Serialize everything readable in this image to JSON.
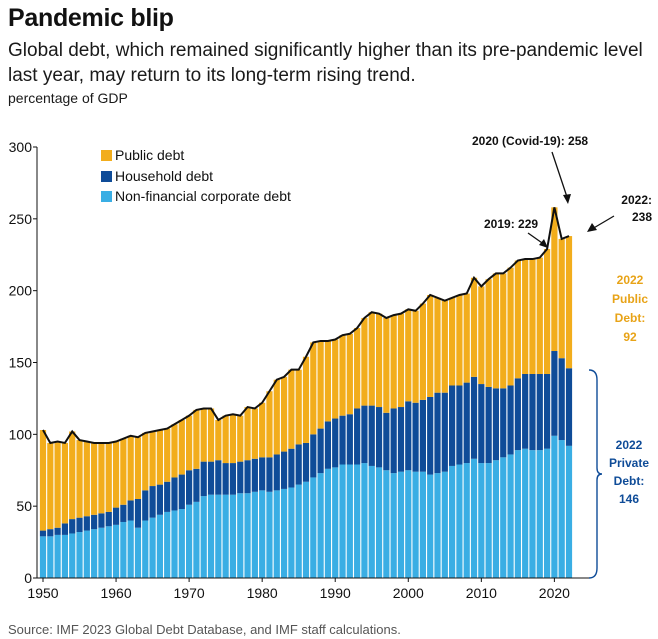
{
  "header": {
    "title": "Pandemic blip",
    "subtitle": "Global debt, which remained significantly higher than its pre-pandemic level last year, may return to its long-term rising trend.",
    "unit": "(percentage of GDP)"
  },
  "source": "Source: IMF 2023 Global Debt Database, and IMF staff calculations.",
  "colors": {
    "public": "#f2ad1c",
    "household": "#0f4c98",
    "corporate": "#3aaee4",
    "total_line": "#111111",
    "public_label": "#e8a317",
    "private_label": "#0f4c98"
  },
  "annotations": {
    "covid": "2020 (Covid-19): 258",
    "y2019": "2019: 229",
    "y2022_a": "2022:",
    "y2022_b": "238",
    "public_1": "2022",
    "public_2": "Public",
    "public_3": "Debt:",
    "public_4": "92",
    "private_1": "2022",
    "private_2": "Private",
    "private_3": "Debt:",
    "private_4": "146"
  },
  "chart_data": {
    "type": "bar",
    "stacked": true,
    "title": "Pandemic blip",
    "xlabel": "",
    "ylabel": "percentage of GDP",
    "ylim": [
      0,
      300
    ],
    "yticks": [
      0,
      50,
      100,
      150,
      200,
      250,
      300
    ],
    "xticks": [
      1950,
      1960,
      1970,
      1980,
      1990,
      2000,
      2010,
      2020
    ],
    "legend": [
      "Public debt",
      "Household debt",
      "Non-financial corporate debt"
    ],
    "x": [
      1950,
      1951,
      1952,
      1953,
      1954,
      1955,
      1956,
      1957,
      1958,
      1959,
      1960,
      1961,
      1962,
      1963,
      1964,
      1965,
      1966,
      1967,
      1968,
      1969,
      1970,
      1971,
      1972,
      1973,
      1974,
      1975,
      1976,
      1977,
      1978,
      1979,
      1980,
      1981,
      1982,
      1983,
      1984,
      1985,
      1986,
      1987,
      1988,
      1989,
      1990,
      1991,
      1992,
      1993,
      1994,
      1995,
      1996,
      1997,
      1998,
      1999,
      2000,
      2001,
      2002,
      2003,
      2004,
      2005,
      2006,
      2007,
      2008,
      2009,
      2010,
      2011,
      2012,
      2013,
      2014,
      2015,
      2016,
      2017,
      2018,
      2019,
      2020,
      2021,
      2022
    ],
    "series": [
      {
        "name": "Non-financial corporate debt",
        "values": [
          29,
          29,
          30,
          30,
          31,
          32,
          33,
          34,
          35,
          36,
          37,
          39,
          40,
          35,
          40,
          42,
          44,
          46,
          47,
          48,
          51,
          53,
          57,
          58,
          58,
          58,
          58,
          59,
          59,
          60,
          61,
          60,
          61,
          62,
          63,
          65,
          67,
          70,
          73,
          76,
          77,
          79,
          79,
          79,
          80,
          78,
          77,
          75,
          73,
          74,
          75,
          74,
          74,
          72,
          73,
          74,
          78,
          79,
          80,
          83,
          80,
          80,
          82,
          84,
          86,
          89,
          90,
          89,
          89,
          90,
          99,
          96,
          92
        ]
      },
      {
        "name": "Household debt",
        "values": [
          4,
          5,
          5,
          8,
          10,
          10,
          10,
          10,
          10,
          10,
          12,
          12,
          14,
          20,
          21,
          22,
          21,
          21,
          23,
          24,
          24,
          23,
          24,
          23,
          24,
          22,
          22,
          22,
          23,
          23,
          23,
          24,
          25,
          26,
          27,
          28,
          27,
          30,
          31,
          33,
          34,
          34,
          35,
          39,
          40,
          42,
          42,
          40,
          45,
          45,
          48,
          48,
          50,
          54,
          56,
          55,
          56,
          55,
          56,
          57,
          55,
          53,
          50,
          48,
          48,
          50,
          52,
          53,
          53,
          52,
          59,
          57,
          54
        ]
      },
      {
        "name": "Public debt",
        "values": [
          70,
          60,
          60,
          56,
          61,
          54,
          52,
          50,
          49,
          48,
          46,
          46,
          45,
          43,
          40,
          38,
          38,
          37,
          37,
          38,
          38,
          41,
          37,
          37,
          28,
          33,
          34,
          32,
          37,
          35,
          38,
          46,
          52,
          52,
          55,
          52,
          60,
          64,
          61,
          56,
          55,
          56,
          56,
          56,
          61,
          65,
          65,
          66,
          65,
          65,
          64,
          64,
          67,
          71,
          66,
          64,
          61,
          63,
          62,
          69,
          68,
          75,
          80,
          80,
          82,
          82,
          80,
          80,
          81,
          87,
          100,
          83,
          92
        ]
      }
    ],
    "total": [
      103,
      94,
      95,
      94,
      102,
      96,
      95,
      94,
      94,
      94,
      95,
      97,
      99,
      98,
      101,
      102,
      103,
      104,
      107,
      110,
      113,
      117,
      118,
      118,
      110,
      113,
      114,
      113,
      119,
      118,
      122,
      130,
      138,
      140,
      145,
      145,
      154,
      164,
      165,
      165,
      166,
      169,
      170,
      174,
      181,
      185,
      184,
      181,
      183,
      184,
      187,
      186,
      191,
      197,
      195,
      193,
      195,
      197,
      198,
      209,
      203,
      208,
      212,
      212,
      216,
      221,
      222,
      222,
      223,
      229,
      258,
      236,
      238
    ]
  }
}
